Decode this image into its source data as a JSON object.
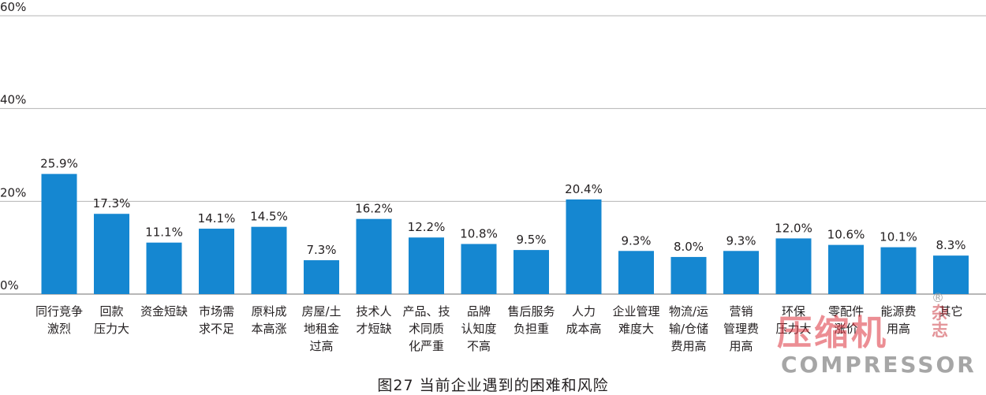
{
  "chart_data": {
    "type": "bar",
    "title": "图27 当前企业遇到的困难和风险",
    "xlabel": "",
    "ylabel": "",
    "ylim": [
      0,
      60
    ],
    "yticks": [
      0,
      20,
      40,
      60
    ],
    "ytick_labels": [
      "0%",
      "20%",
      "40%",
      "60%"
    ],
    "grid": true,
    "legend": "none",
    "bar_color": "#1587d1",
    "categories": [
      [
        "同行竞争",
        "激烈"
      ],
      [
        "回款",
        "压力大"
      ],
      [
        "资金短缺"
      ],
      [
        "市场需",
        "求不足"
      ],
      [
        "原料成",
        "本高涨"
      ],
      [
        "房屋/土",
        "地租金",
        "过高"
      ],
      [
        "技术人",
        "才短缺"
      ],
      [
        "产品、技",
        "术同质",
        "化严重"
      ],
      [
        "品牌",
        "认知度",
        "不高"
      ],
      [
        "售后服务",
        "负担重"
      ],
      [
        "人力",
        "成本高"
      ],
      [
        "企业管理",
        "难度大"
      ],
      [
        "物流/运",
        "输/仓储",
        "费用高"
      ],
      [
        "营销",
        "管理费",
        "用高"
      ],
      [
        "环保",
        "压力大"
      ],
      [
        "零配件",
        "涨价"
      ],
      [
        "能源费",
        "用高"
      ],
      [
        "其它"
      ]
    ],
    "values": [
      25.9,
      17.3,
      11.1,
      14.1,
      14.5,
      7.3,
      16.2,
      12.2,
      10.8,
      9.5,
      20.4,
      9.3,
      8.0,
      9.3,
      12.0,
      10.6,
      10.1,
      8.3
    ],
    "value_labels": [
      "25.9%",
      "17.3%",
      "11.1%",
      "14.1%",
      "14.5%",
      "7.3%",
      "16.2%",
      "12.2%",
      "10.8%",
      "9.5%",
      "20.4%",
      "9.3%",
      "8.0%",
      "9.3%",
      "12.0%",
      "10.6%",
      "10.1%",
      "8.3%"
    ]
  },
  "watermark": {
    "main": "压缩机",
    "side": "杂志",
    "registered": "®",
    "sub": "COMPRESSOR"
  }
}
